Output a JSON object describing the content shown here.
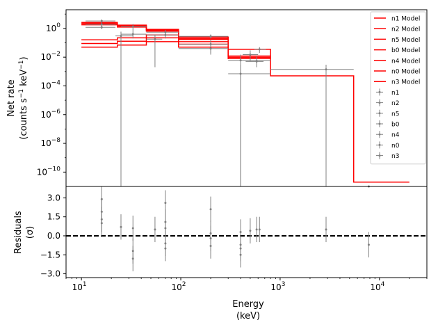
{
  "chart_data": [
    {
      "type": "line",
      "panel": "top",
      "ylabel_line1": "Net rate",
      "ylabel_line2_prefix": "(counts s",
      "ylabel_line2_mid": " keV",
      "ylabel_line2_suffix": ")",
      "ylabel_exp": "−1",
      "xscale": "log",
      "yscale": "log",
      "xlim": [
        7,
        30000
      ],
      "ylim": [
        1e-11,
        20
      ],
      "y_ticks": [
        {
          "value": 1,
          "label": "10",
          "exp": "0"
        },
        {
          "value": 0.01,
          "label": "10",
          "exp": "−2"
        },
        {
          "value": 0.0001,
          "label": "10",
          "exp": "−4"
        },
        {
          "value": 1e-06,
          "label": "10",
          "exp": "−6"
        },
        {
          "value": 1e-08,
          "label": "10",
          "exp": "−8"
        },
        {
          "value": 1e-10,
          "label": "10",
          "exp": "−10"
        }
      ],
      "legend_position": "top-right",
      "model_color": "#ff0000",
      "data_color": "#808080",
      "legend": [
        {
          "name": "n1 Model",
          "kind": "model"
        },
        {
          "name": "n2 Model",
          "kind": "model"
        },
        {
          "name": "n5 Model",
          "kind": "model"
        },
        {
          "name": "b0 Model",
          "kind": "model"
        },
        {
          "name": "n4 Model",
          "kind": "model"
        },
        {
          "name": "n0 Model",
          "kind": "model"
        },
        {
          "name": "n3 Model",
          "kind": "model"
        },
        {
          "name": "n1",
          "kind": "data"
        },
        {
          "name": "n2",
          "kind": "data"
        },
        {
          "name": "n5",
          "kind": "data"
        },
        {
          "name": "b0",
          "kind": "data"
        },
        {
          "name": "n4",
          "kind": "data"
        },
        {
          "name": "n0",
          "kind": "data"
        },
        {
          "name": "n3",
          "kind": "data"
        }
      ],
      "model_series": [
        {
          "name": "n1 Model",
          "edges": [
            10,
            23,
            45,
            95,
            300,
            800
          ],
          "values": [
            2.6,
            1.7,
            0.85,
            0.25,
            0.012
          ]
        },
        {
          "name": "n2 Model",
          "edges": [
            10,
            23,
            45,
            95,
            300,
            800
          ],
          "values": [
            2.2,
            1.5,
            0.75,
            0.2,
            0.01
          ]
        },
        {
          "name": "n5 Model",
          "edges": [
            10,
            23,
            45,
            95,
            300,
            800
          ],
          "values": [
            1.8,
            1.25,
            0.65,
            0.17,
            0.008
          ]
        },
        {
          "name": "b0 Model",
          "edges": [
            300,
            800,
            5500,
            20000
          ],
          "values": [
            0.035,
            0.0005,
            2e-11
          ]
        },
        {
          "name": "n4 Model",
          "edges": [
            10,
            23,
            45,
            95,
            300
          ],
          "values": [
            0.16,
            0.22,
            0.35,
            0.12
          ]
        },
        {
          "name": "n0 Model",
          "edges": [
            10,
            23,
            45,
            95,
            300
          ],
          "values": [
            0.09,
            0.13,
            0.22,
            0.08
          ]
        },
        {
          "name": "n3 Model",
          "edges": [
            10,
            23,
            45,
            95,
            300
          ],
          "values": [
            0.05,
            0.07,
            0.12,
            0.05
          ]
        }
      ],
      "data_points": [
        {
          "x": 16,
          "xlo": 11,
          "xhi": 22,
          "y": 3.3,
          "ylo": 2.4,
          "yhi": 4.2
        },
        {
          "x": 16,
          "xlo": 11,
          "xhi": 22,
          "y": 1.9,
          "ylo": 1.4,
          "yhi": 2.6
        },
        {
          "x": 16,
          "xlo": 11,
          "xhi": 22,
          "y": 1.2,
          "ylo": 0.9,
          "yhi": 1.7
        },
        {
          "x": 25,
          "xlo": 22,
          "xhi": 33,
          "y": 0.3,
          "ylo": 1e-11,
          "yhi": 0.6
        },
        {
          "x": 33,
          "xlo": 25,
          "xhi": 45,
          "y": 1.3,
          "ylo": 0.7,
          "yhi": 2.0
        },
        {
          "x": 33,
          "xlo": 25,
          "xhi": 45,
          "y": 0.4,
          "ylo": 0.2,
          "yhi": 0.7
        },
        {
          "x": 55,
          "xlo": 45,
          "xhi": 65,
          "y": 0.18,
          "ylo": 0.002,
          "yhi": 0.35
        },
        {
          "x": 70,
          "xlo": 45,
          "xhi": 95,
          "y": 0.55,
          "ylo": 0.35,
          "yhi": 0.8
        },
        {
          "x": 70,
          "xlo": 45,
          "xhi": 95,
          "y": 0.35,
          "ylo": 0.2,
          "yhi": 0.55
        },
        {
          "x": 200,
          "xlo": 95,
          "xhi": 300,
          "y": 0.08,
          "ylo": 0.02,
          "yhi": 0.15
        },
        {
          "x": 200,
          "xlo": 95,
          "xhi": 300,
          "y": 0.04,
          "ylo": 0.015,
          "yhi": 0.08
        },
        {
          "x": 200,
          "xlo": 95,
          "xhi": 300,
          "y": 0.28,
          "ylo": 0.2,
          "yhi": 0.38
        },
        {
          "x": 400,
          "xlo": 300,
          "xhi": 800,
          "y": 0.006,
          "ylo": 1e-11,
          "yhi": 0.015
        },
        {
          "x": 400,
          "xlo": 300,
          "xhi": 800,
          "y": 0.0007,
          "ylo": 1e-11,
          "yhi": 0.003
        },
        {
          "x": 500,
          "xlo": 420,
          "xhi": 600,
          "y": 0.015,
          "ylo": 0.005,
          "yhi": 0.03
        },
        {
          "x": 580,
          "xlo": 450,
          "xhi": 680,
          "y": 0.005,
          "ylo": 0.002,
          "yhi": 0.012
        },
        {
          "x": 620,
          "xlo": 550,
          "xhi": 720,
          "y": 0.035,
          "ylo": 0.02,
          "yhi": 0.05
        },
        {
          "x": 2900,
          "xlo": 800,
          "xhi": 5500,
          "y": 0.0014,
          "ylo": 1e-11,
          "yhi": 0.003
        },
        {
          "x": 7800,
          "xlo": 5500,
          "xhi": 10000,
          "y": 1e-11,
          "ylo": 1e-11,
          "yhi": 1e-11
        }
      ]
    },
    {
      "type": "scatter",
      "panel": "bottom",
      "ylabel_line1": "Residuals",
      "ylabel_line2": "(σ)",
      "xlabel_line1": "Energy",
      "xlabel_line2": "(keV)",
      "xscale": "log",
      "xlim": [
        7,
        30000
      ],
      "ylim": [
        -3.3,
        3.9
      ],
      "y_ticks": [
        {
          "value": 3.0,
          "label": "3.0"
        },
        {
          "value": 1.5,
          "label": "1.5"
        },
        {
          "value": 0.0,
          "label": "0.0"
        },
        {
          "value": -1.5,
          "label": "−1.5"
        },
        {
          "value": -3.0,
          "label": "−3.0"
        }
      ],
      "x_ticks": [
        {
          "value": 10,
          "label": "10",
          "exp": "1"
        },
        {
          "value": 100,
          "label": "10",
          "exp": "2"
        },
        {
          "value": 1000,
          "label": "10",
          "exp": "3"
        },
        {
          "value": 10000,
          "label": "10",
          "exp": "4"
        }
      ],
      "zero_line": 0,
      "zero_line_style": "dashed",
      "data_color": "#808080",
      "points": [
        {
          "x": 16,
          "y": 2.9,
          "err": 1.0
        },
        {
          "x": 16,
          "y": 1.9,
          "err": 1.0
        },
        {
          "x": 16,
          "y": 1.3,
          "err": 1.0
        },
        {
          "x": 16,
          "y": 1.0,
          "err": 1.0
        },
        {
          "x": 25,
          "y": 0.7,
          "err": 1.0
        },
        {
          "x": 33,
          "y": 0.6,
          "err": 1.0
        },
        {
          "x": 33,
          "y": -1.2,
          "err": 1.0
        },
        {
          "x": 33,
          "y": -1.8,
          "err": 1.0
        },
        {
          "x": 55,
          "y": 0.5,
          "err": 1.0
        },
        {
          "x": 70,
          "y": 2.6,
          "err": 1.0
        },
        {
          "x": 70,
          "y": 1.1,
          "err": 1.0
        },
        {
          "x": 70,
          "y": 0.6,
          "err": 1.0
        },
        {
          "x": 70,
          "y": -0.6,
          "err": 1.0
        },
        {
          "x": 70,
          "y": -1.0,
          "err": 1.0
        },
        {
          "x": 200,
          "y": 2.1,
          "err": 1.0
        },
        {
          "x": 200,
          "y": 0.2,
          "err": 1.0
        },
        {
          "x": 200,
          "y": -0.2,
          "err": 1.0
        },
        {
          "x": 200,
          "y": -0.8,
          "err": 1.0
        },
        {
          "x": 400,
          "y": 0.3,
          "err": 1.0
        },
        {
          "x": 400,
          "y": -0.7,
          "err": 1.0
        },
        {
          "x": 400,
          "y": -1.0,
          "err": 1.0
        },
        {
          "x": 400,
          "y": -1.5,
          "err": 1.0
        },
        {
          "x": 500,
          "y": 0.4,
          "err": 1.0
        },
        {
          "x": 580,
          "y": 0.5,
          "err": 1.0
        },
        {
          "x": 620,
          "y": 0.5,
          "err": 1.0
        },
        {
          "x": 2900,
          "y": 0.5,
          "err": 1.0
        },
        {
          "x": 7800,
          "y": -0.7,
          "err": 1.0
        }
      ]
    }
  ]
}
